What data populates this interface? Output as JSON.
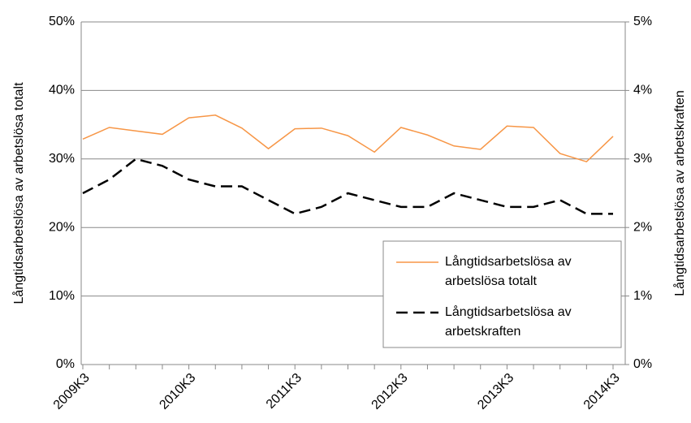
{
  "chart_data": {
    "type": "line",
    "categories": [
      "2009K3",
      null,
      null,
      null,
      "2010K3",
      null,
      null,
      null,
      "2011K3",
      null,
      null,
      null,
      "2012K3",
      null,
      null,
      null,
      "2013K3",
      null,
      null,
      null,
      "2014K3"
    ],
    "ylabel": "Långtidsarbetslösa av arbetslösa totalt",
    "y2label": "Långtidsarbetslösa av arbetskraften",
    "ylim": [
      0,
      50
    ],
    "yticks": [
      {
        "value": 0,
        "label": "0%"
      },
      {
        "value": 10,
        "label": "10%"
      },
      {
        "value": 20,
        "label": "20%"
      },
      {
        "value": 30,
        "label": "30%"
      },
      {
        "value": 40,
        "label": "40%"
      },
      {
        "value": 50,
        "label": "50%"
      }
    ],
    "y2lim": [
      0,
      5
    ],
    "y2ticks": [
      {
        "value": 0,
        "label": "0%"
      },
      {
        "value": 1,
        "label": "1%"
      },
      {
        "value": 2,
        "label": "2%"
      },
      {
        "value": 3,
        "label": "3%"
      },
      {
        "value": 4,
        "label": "4%"
      },
      {
        "value": 5,
        "label": "5%"
      }
    ],
    "grid": true,
    "legend": "lower right",
    "series": [
      {
        "name": "Långtidsarbetslösa av arbetslösa totalt",
        "color": "#f79646",
        "dash": false,
        "values": [
          32.9,
          34.6,
          34.1,
          33.6,
          36.0,
          36.4,
          34.5,
          31.5,
          34.4,
          34.5,
          33.4,
          31.0,
          34.6,
          33.5,
          31.9,
          31.4,
          34.8,
          34.6,
          30.8,
          29.6,
          33.3
        ]
      },
      {
        "name": "Långtidsarbetslösa av arbetskraften",
        "color": "#000000",
        "dash": true,
        "axis": "y2",
        "values": [
          2.5,
          2.7,
          3.0,
          2.9,
          2.7,
          2.6,
          2.6,
          2.4,
          2.2,
          2.3,
          2.5,
          2.4,
          2.3,
          2.3,
          2.5,
          2.4,
          2.3,
          2.3,
          2.4,
          2.2,
          2.2
        ]
      }
    ]
  }
}
